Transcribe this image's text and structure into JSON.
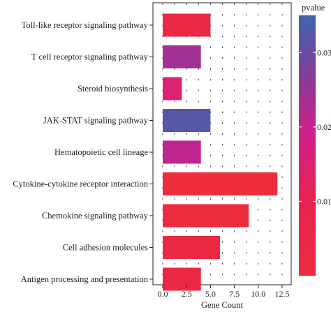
{
  "chart_data": {
    "type": "bar",
    "orientation": "horizontal",
    "categories": [
      "Toll-like receptor signaling pathway",
      "T cell receptor signaling pathway",
      "Steroid biosynthesis",
      "JAK-STAT signaling pathway",
      "Hematopoietic cell lineage",
      "Cytokine-cytokine receptor interaction",
      "Chemokine signaling pathway",
      "Cell adhesion molecules",
      "Antigen processing and presentation"
    ],
    "values": [
      5,
      4,
      2,
      5,
      4,
      12,
      9,
      6,
      4
    ],
    "pvalue": [
      0.004,
      0.024,
      0.015,
      0.032,
      0.021,
      0.0,
      0.001,
      0.003,
      0.004
    ],
    "xlabel": "Gene Count",
    "ylabel": "",
    "xlim": [
      0,
      12.5
    ],
    "xticks": [
      0.0,
      2.5,
      5.0,
      7.5,
      10.0,
      12.5
    ],
    "xtick_labels": [
      "0.0",
      "2.5",
      "5.0",
      "7.5",
      "10.0",
      "12.5"
    ],
    "grid": "dotted",
    "legend": {
      "title": "pvalue",
      "placement": "right",
      "range": [
        0.0,
        0.035
      ],
      "ticks": [
        0.01,
        0.02,
        0.03
      ],
      "tick_labels": [
        "0.01",
        "0.02",
        "0.03"
      ],
      "colors": {
        "low": "#ee2c3c",
        "mid": "#d0208c",
        "high": "#3d66b0"
      }
    }
  }
}
